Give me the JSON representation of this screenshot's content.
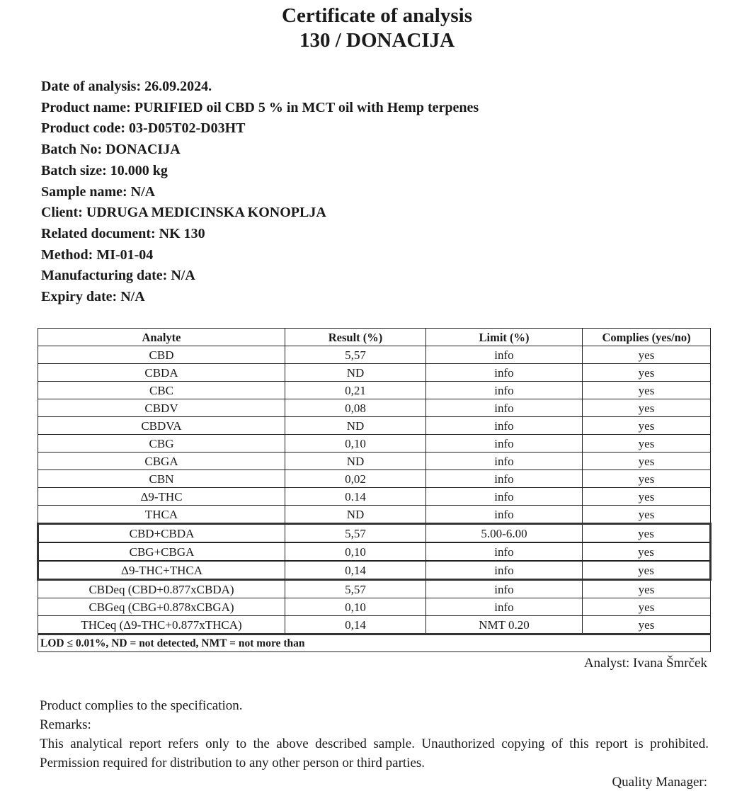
{
  "header": {
    "title": "Certificate of analysis",
    "subtitle": "130 / DONACIJA"
  },
  "fields": [
    "Date of analysis: 26.09.2024.",
    "Product name: PURIFIED oil CBD 5 % in MCT oil with Hemp terpenes",
    "Product code: 03-D05T02-D03HT",
    "Batch No: DONACIJA",
    "Batch size: 10.000 kg",
    "Sample name: N/A",
    "Client: UDRUGA MEDICINSKA KONOPLJA",
    "Related document: NK 130",
    "Method: MI-01-04",
    "Manufacturing date: N/A",
    "Expiry date: N/A"
  ],
  "table": {
    "columns": [
      "Analyte",
      "Result (%)",
      "Limit (%)",
      "Complies (yes/no)"
    ],
    "rows": [
      [
        "CBD",
        "5,57",
        "info",
        "yes"
      ],
      [
        "CBDA",
        "ND",
        "info",
        "yes"
      ],
      [
        "CBC",
        "0,21",
        "info",
        "yes"
      ],
      [
        "CBDV",
        "0,08",
        "info",
        "yes"
      ],
      [
        "CBDVA",
        "ND",
        "info",
        "yes"
      ],
      [
        "CBG",
        "0,10",
        "info",
        "yes"
      ],
      [
        "CBGA",
        "ND",
        "info",
        "yes"
      ],
      [
        "CBN",
        "0,02",
        "info",
        "yes"
      ],
      [
        "Δ9-THC",
        "0.14",
        "info",
        "yes"
      ],
      [
        "THCA",
        "ND",
        "info",
        "yes"
      ],
      [
        "CBD+CBDA",
        "5,57",
        "5.00-6.00",
        "yes"
      ],
      [
        "CBG+CBGA",
        "0,10",
        "info",
        "yes"
      ],
      [
        "Δ9-THC+THCA",
        "0,14",
        "info",
        "yes"
      ],
      [
        "CBDeq (CBD+0.877xCBDA)",
        "5,57",
        "info",
        "yes"
      ],
      [
        "CBGeq (CBG+0.878xCBGA)",
        "0,10",
        "info",
        "yes"
      ],
      [
        "THCeq (Δ9-THC+0.877xTHCA)",
        "0,14",
        "NMT 0.20",
        "yes"
      ]
    ],
    "footnote": "LOD ≤ 0.01%, ND = not detected, NMT = not more than"
  },
  "analyst": "Analyst: Ivana Šmrček",
  "footer": {
    "complies": "Product complies to the specification.",
    "remarks": "Remarks:",
    "disclaimer": "This analytical report refers only to the above described sample. Unauthorized copying of this report is prohibited. Permission required for distribution to any other person or third parties.",
    "quality_manager": "Quality Manager:"
  }
}
